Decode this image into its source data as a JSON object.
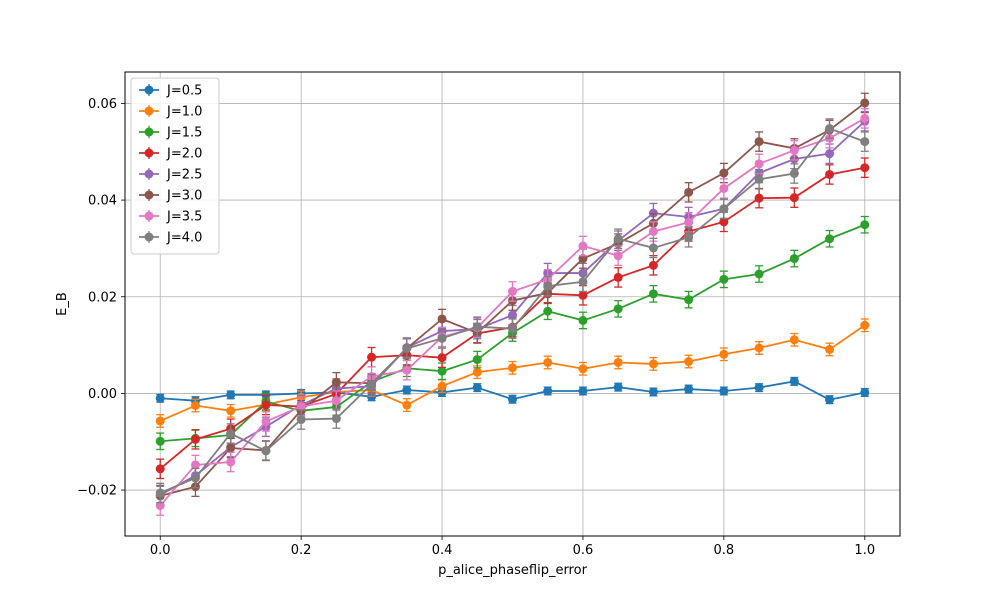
{
  "chart_data": {
    "type": "line",
    "title": "",
    "xlabel": "p_alice_phaseflip_error",
    "ylabel": "E_B",
    "xlim": [
      -0.05,
      1.05
    ],
    "ylim": [
      -0.0295,
      0.0665
    ],
    "xticks": [
      0.0,
      0.2,
      0.4,
      0.6,
      0.8,
      1.0
    ],
    "xtick_labels": [
      "0.0",
      "0.2",
      "0.4",
      "0.6",
      "0.8",
      "1.0"
    ],
    "yticks": [
      -0.02,
      0.0,
      0.02,
      0.04,
      0.06
    ],
    "ytick_labels": [
      "−0.02",
      "0.00",
      "0.02",
      "0.04",
      "0.06"
    ],
    "grid": true,
    "legend_position": "top-left",
    "error_bars": true,
    "x": [
      0.0,
      0.05,
      0.1,
      0.15,
      0.2,
      0.25,
      0.3,
      0.35,
      0.4,
      0.45,
      0.5,
      0.55,
      0.6,
      0.65,
      0.7,
      0.75,
      0.8,
      0.85,
      0.9,
      0.95,
      1.0
    ],
    "series": [
      {
        "name": "J=0.5",
        "color": "#1f77b4",
        "values": [
          -0.001,
          -0.0015,
          -0.0003,
          -0.0003,
          0.0,
          0.0002,
          -0.0007,
          0.0007,
          0.0002,
          0.0012,
          -0.0012,
          0.0005,
          0.0005,
          0.0013,
          0.0003,
          0.0009,
          0.0005,
          0.0012,
          0.0025,
          -0.0013,
          0.0002
        ],
        "errors": [
          0.0008,
          0.0008,
          0.0008,
          0.0008,
          0.0008,
          0.0008,
          0.0008,
          0.0008,
          0.0008,
          0.0008,
          0.0008,
          0.0008,
          0.0008,
          0.0008,
          0.0008,
          0.0008,
          0.0008,
          0.0008,
          0.0008,
          0.0008,
          0.0008
        ]
      },
      {
        "name": "J=1.0",
        "color": "#ff7f0e",
        "values": [
          -0.0057,
          -0.0025,
          -0.0036,
          -0.0023,
          -0.0008,
          0.0003,
          0.0007,
          -0.0024,
          0.0015,
          0.0044,
          0.0053,
          0.0064,
          0.0051,
          0.0064,
          0.0061,
          0.0066,
          0.0081,
          0.0094,
          0.0111,
          0.0091,
          0.0141
        ],
        "errors": [
          0.0013,
          0.0013,
          0.0013,
          0.0013,
          0.0013,
          0.0013,
          0.0013,
          0.0013,
          0.0013,
          0.0013,
          0.0013,
          0.0013,
          0.0013,
          0.0013,
          0.0013,
          0.0013,
          0.0013,
          0.0013,
          0.0013,
          0.0013,
          0.0013
        ]
      },
      {
        "name": "J=1.5",
        "color": "#2ca02c",
        "values": [
          -0.0099,
          -0.0093,
          -0.0086,
          -0.0017,
          -0.0036,
          -0.0028,
          0.0024,
          0.0052,
          0.0046,
          0.007,
          0.0125,
          0.017,
          0.0151,
          0.0175,
          0.0206,
          0.0194,
          0.0236,
          0.0247,
          0.0279,
          0.032,
          0.0349
        ],
        "errors": [
          0.0017,
          0.0017,
          0.0017,
          0.0017,
          0.0017,
          0.0017,
          0.0017,
          0.0017,
          0.0017,
          0.0017,
          0.0017,
          0.0017,
          0.0017,
          0.0017,
          0.0017,
          0.0017,
          0.0017,
          0.0017,
          0.0017,
          0.0017,
          0.0017
        ]
      },
      {
        "name": "J=2.0",
        "color": "#d62728",
        "values": [
          -0.0156,
          -0.0095,
          -0.0073,
          -0.0024,
          -0.0027,
          -0.0001,
          0.0075,
          0.0079,
          0.0074,
          0.0124,
          0.0137,
          0.0206,
          0.0203,
          0.024,
          0.0265,
          0.0335,
          0.0355,
          0.0404,
          0.0405,
          0.0453,
          0.0467
        ],
        "errors": [
          0.002,
          0.002,
          0.002,
          0.002,
          0.002,
          0.002,
          0.002,
          0.002,
          0.002,
          0.002,
          0.002,
          0.002,
          0.002,
          0.002,
          0.002,
          0.002,
          0.002,
          0.002,
          0.002,
          0.002,
          0.002
        ]
      },
      {
        "name": "J=2.5",
        "color": "#9467bd",
        "values": [
          -0.021,
          -0.017,
          -0.0111,
          -0.0069,
          -0.0024,
          0.001,
          0.0015,
          0.0095,
          0.0129,
          0.0133,
          0.0162,
          0.0249,
          0.0249,
          0.0316,
          0.0373,
          0.0365,
          0.0382,
          0.0456,
          0.0485,
          0.0496,
          0.0563
        ],
        "errors": [
          0.002,
          0.002,
          0.002,
          0.002,
          0.002,
          0.002,
          0.002,
          0.002,
          0.002,
          0.002,
          0.002,
          0.002,
          0.002,
          0.002,
          0.002,
          0.002,
          0.002,
          0.002,
          0.002,
          0.002,
          0.002
        ]
      },
      {
        "name": "J=3.0",
        "color": "#8c564b",
        "values": [
          -0.0212,
          -0.0193,
          -0.0113,
          -0.0118,
          -0.0035,
          0.0023,
          0.0021,
          0.0093,
          0.0154,
          0.0125,
          0.0192,
          0.0208,
          0.0279,
          0.031,
          0.0352,
          0.0416,
          0.0456,
          0.0521,
          0.0507,
          0.0545,
          0.0601
        ],
        "errors": [
          0.002,
          0.002,
          0.002,
          0.002,
          0.002,
          0.002,
          0.002,
          0.002,
          0.002,
          0.002,
          0.002,
          0.002,
          0.002,
          0.002,
          0.002,
          0.002,
          0.002,
          0.002,
          0.002,
          0.002,
          0.002
        ]
      },
      {
        "name": "J=3.5",
        "color": "#e377c2",
        "values": [
          -0.0232,
          -0.0148,
          -0.0142,
          -0.0058,
          -0.0027,
          -0.0015,
          0.0035,
          0.0048,
          0.0117,
          0.0136,
          0.0211,
          0.0236,
          0.0305,
          0.0285,
          0.0335,
          0.0354,
          0.0424,
          0.0475,
          0.0503,
          0.0528,
          0.0569
        ],
        "errors": [
          0.002,
          0.002,
          0.002,
          0.002,
          0.002,
          0.002,
          0.002,
          0.002,
          0.002,
          0.002,
          0.002,
          0.002,
          0.002,
          0.002,
          0.002,
          0.002,
          0.002,
          0.002,
          0.002,
          0.002,
          0.002
        ]
      },
      {
        "name": "J=4.0",
        "color": "#7f7f7f",
        "values": [
          -0.0206,
          -0.0175,
          -0.0083,
          -0.0119,
          -0.0054,
          -0.0052,
          0.0019,
          0.0093,
          0.0114,
          0.0138,
          0.0134,
          0.0222,
          0.0231,
          0.032,
          0.0301,
          0.0323,
          0.0382,
          0.0443,
          0.0455,
          0.0548,
          0.0521
        ],
        "errors": [
          0.002,
          0.002,
          0.002,
          0.002,
          0.002,
          0.002,
          0.002,
          0.002,
          0.002,
          0.002,
          0.002,
          0.002,
          0.002,
          0.002,
          0.002,
          0.002,
          0.002,
          0.002,
          0.002,
          0.002,
          0.002
        ]
      }
    ]
  }
}
